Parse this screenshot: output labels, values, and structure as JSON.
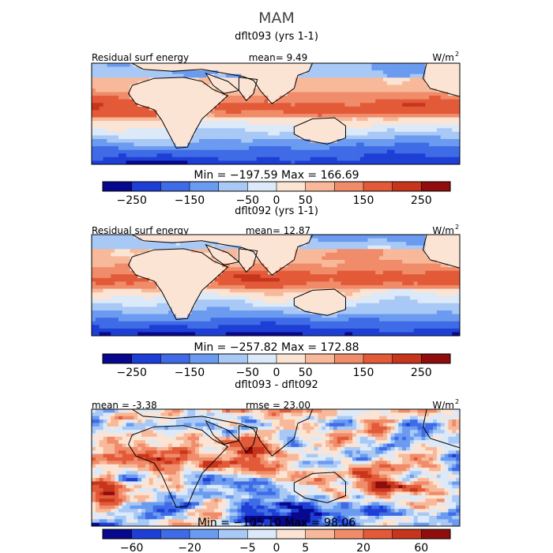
{
  "title": "MAM",
  "colors": {
    "map": [
      "#08088f",
      "#1e3fd6",
      "#3f6ce6",
      "#6b9bf0",
      "#a8c8f5",
      "#dce9f8",
      "#fbe4d4",
      "#f7b99a",
      "#f08c6a",
      "#e35a38",
      "#c8351d",
      "#8f0d0d"
    ],
    "coastline": "#000000",
    "border": "#000000"
  },
  "panels": [
    {
      "name": "panel-1",
      "title": "dflt093 (yrs 1-1)",
      "left_label": "Residual surf energy",
      "center_label": "mean=    9.49",
      "units": "W/m",
      "units_sup": "2",
      "min_max": "Min = −197.59 Max = 166.69",
      "colorbar_ticks": [
        "−250",
        "−150",
        "−50",
        "0",
        "50",
        "150",
        "250"
      ]
    },
    {
      "name": "panel-2",
      "title": "dflt092 (yrs 1-1)",
      "left_label": "Residual surf energy",
      "center_label": "mean=   12.87",
      "units": "W/m",
      "units_sup": "2",
      "min_max": "Min = −257.82 Max = 172.88",
      "colorbar_ticks": [
        "−250",
        "−150",
        "−50",
        "0",
        "50",
        "150",
        "250"
      ]
    },
    {
      "name": "panel-3",
      "title": "dflt093 - dflt092",
      "left_label": "mean =  -3.38",
      "center_label": "rmse =   23.00",
      "units": "W/m",
      "units_sup": "2",
      "min_max": "Min = −105.10 Max =  98.06",
      "colorbar_ticks": [
        "−60",
        "−20",
        "−5",
        "0",
        "5",
        "20",
        "60"
      ]
    }
  ],
  "chart_data": [
    {
      "type": "heatmap",
      "title": "dflt093 (yrs 1-1)",
      "variable": "Residual surf energy",
      "units": "W/m2",
      "mean": 9.49,
      "min": -197.59,
      "max": 166.69,
      "colorbar_levels": [
        -300,
        -250,
        -200,
        -150,
        -100,
        -50,
        0,
        50,
        100,
        150,
        200,
        250,
        300
      ],
      "colorbar_ticks": [
        -250,
        -150,
        -50,
        0,
        50,
        150,
        250
      ]
    },
    {
      "type": "heatmap",
      "title": "dflt092 (yrs 1-1)",
      "variable": "Residual surf energy",
      "units": "W/m2",
      "mean": 12.87,
      "min": -257.82,
      "max": 172.88,
      "colorbar_levels": [
        -300,
        -250,
        -200,
        -150,
        -100,
        -50,
        0,
        50,
        100,
        150,
        200,
        250,
        300
      ],
      "colorbar_ticks": [
        -250,
        -150,
        -50,
        0,
        50,
        150,
        250
      ]
    },
    {
      "type": "heatmap",
      "title": "dflt093 - dflt092",
      "units": "W/m2",
      "mean": -3.38,
      "rmse": 23.0,
      "min": -105.1,
      "max": 98.06,
      "colorbar_levels": [
        -80,
        -60,
        -40,
        -20,
        -10,
        -5,
        0,
        5,
        10,
        20,
        40,
        60,
        80
      ],
      "colorbar_ticks": [
        -60,
        -20,
        -5,
        0,
        5,
        20,
        60
      ]
    }
  ]
}
